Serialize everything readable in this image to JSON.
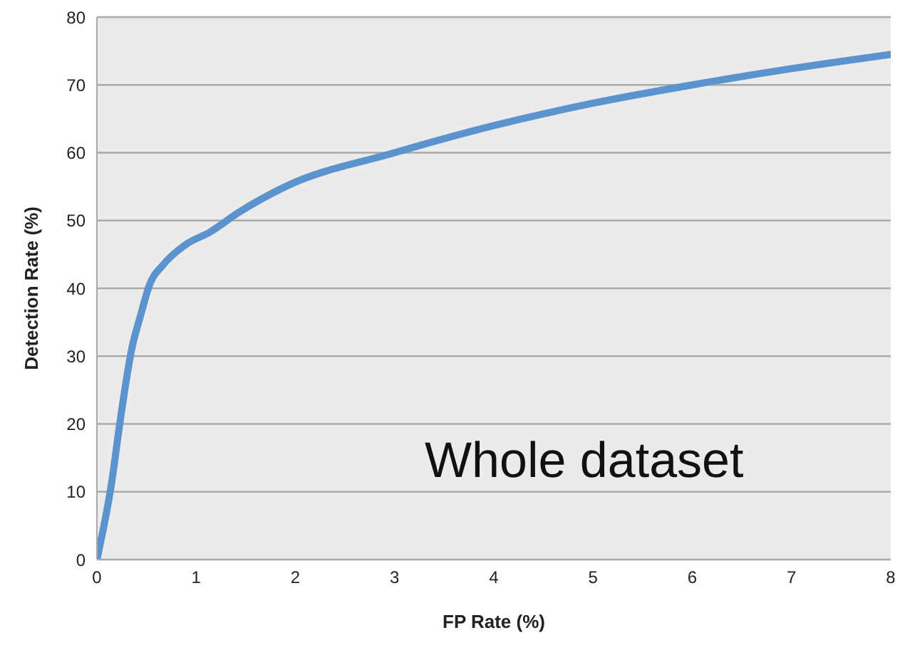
{
  "chart_data": {
    "type": "line",
    "xlabel": "FP Rate (%)",
    "ylabel": "Detection Rate (%)",
    "annotations": [
      "Whole dataset"
    ],
    "series": [
      {
        "color": "#5b93cf",
        "x": [
          0,
          0.15,
          0.23,
          0.35,
          0.44,
          0.53,
          0.67,
          0.9,
          1.14,
          1.43,
          1.9,
          3,
          4,
          5,
          6,
          7,
          8
        ],
        "values": [
          0,
          11.5,
          20,
          31,
          36,
          40.5,
          43.5,
          46.5,
          48.3,
          51.2,
          55,
          60,
          64,
          67.3,
          70,
          72.4,
          74.5
        ]
      }
    ],
    "xlim": [
      0,
      8
    ],
    "xticks": [
      0,
      1,
      2,
      3,
      4,
      5,
      6,
      7,
      8
    ],
    "ylim": [
      0,
      80
    ],
    "yticks": [
      0,
      10,
      20,
      30,
      40,
      50,
      60,
      70,
      80
    ],
    "grid": "y",
    "marker": "none",
    "line_style": "solid"
  }
}
